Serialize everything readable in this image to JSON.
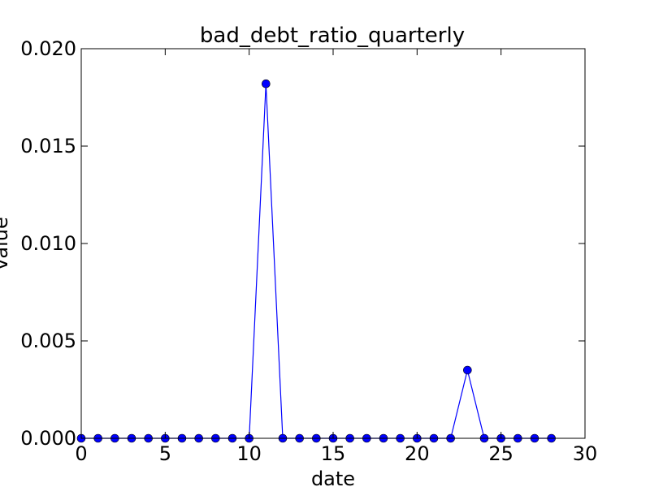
{
  "chart_data": {
    "type": "line",
    "title": "bad_debt_ratio_quarterly",
    "xlabel": "date",
    "ylabel": "value",
    "xlim": [
      0,
      30
    ],
    "ylim": [
      0,
      0.02
    ],
    "xticks": [
      0,
      5,
      10,
      15,
      20,
      25,
      30
    ],
    "xtick_labels": [
      "0",
      "5",
      "10",
      "15",
      "20",
      "25",
      "30"
    ],
    "yticks": [
      0,
      0.005,
      0.01,
      0.015,
      0.02
    ],
    "ytick_labels": [
      "0.000",
      "0.005",
      "0.010",
      "0.015",
      "0.020"
    ],
    "grid": false,
    "legend": "none",
    "colors": {
      "line": "#0000ff",
      "marker_fill": "#0000ff",
      "marker_edge": "#000000",
      "frame": "#000000"
    },
    "series": [
      {
        "x": [
          0,
          1,
          2,
          3,
          4,
          5,
          6,
          7,
          8,
          9,
          10,
          11,
          12,
          13,
          14,
          15,
          16,
          17,
          18,
          19,
          20,
          21,
          22,
          23,
          24,
          25,
          26,
          27,
          28
        ],
        "values": [
          0,
          0,
          0,
          0,
          0,
          0,
          0,
          0,
          0,
          0,
          0,
          0.0182,
          0,
          0,
          0,
          0,
          0,
          0,
          0,
          0,
          0,
          0,
          0,
          0.0035,
          0,
          0,
          0,
          0,
          0
        ]
      }
    ]
  }
}
